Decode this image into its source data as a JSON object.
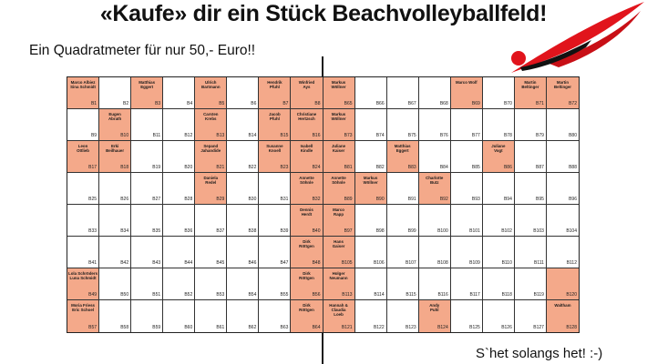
{
  "header": {
    "title": "«Kaufe» dir ein Stück Beachvolleyballfeld!",
    "subtitle": "Ein Quadratmeter für nur 50,- Euro!!"
  },
  "footer": {
    "text": "S`het solangs het!  :-)"
  },
  "colors": {
    "sold": "#f4a98a",
    "logo_red": "#e1141c",
    "grid_line": "#333333"
  },
  "logo": {
    "icon": "volleyball-player-swoosh-icon"
  },
  "field": {
    "rows": [
      [
        {
          "num": "B1",
          "name": "Marco Albiez\nSina Schmidt",
          "sold": true
        },
        {
          "num": "B2",
          "name": "",
          "sold": false
        },
        {
          "num": "B3",
          "name": "Matthias\nEggert",
          "sold": true
        },
        {
          "num": "B4",
          "name": "",
          "sold": false
        },
        {
          "num": "B5",
          "name": "Ulrich\nBartmann",
          "sold": true
        },
        {
          "num": "B6",
          "name": "",
          "sold": false
        },
        {
          "num": "B7",
          "name": "Hendrik\nPfuhl",
          "sold": true
        },
        {
          "num": "B8",
          "name": "Winfried\nAys",
          "sold": true
        },
        {
          "num": "B65",
          "name": "Markus\nWöllner",
          "sold": true
        },
        {
          "num": "B66",
          "name": "",
          "sold": false
        },
        {
          "num": "B67",
          "name": "",
          "sold": false
        },
        {
          "num": "B68",
          "name": "",
          "sold": false
        },
        {
          "num": "B69",
          "name": "Marco Wolf",
          "sold": true
        },
        {
          "num": "B70",
          "name": "",
          "sold": false
        },
        {
          "num": "B71",
          "name": "Martin\nBeltinger",
          "sold": true
        },
        {
          "num": "B72",
          "name": "Martin\nBeltinger",
          "sold": true
        }
      ],
      [
        {
          "num": "B9",
          "name": "",
          "sold": false
        },
        {
          "num": "B10",
          "name": "Eugen\nAbrath",
          "sold": true
        },
        {
          "num": "B11",
          "name": "",
          "sold": false
        },
        {
          "num": "B12",
          "name": "",
          "sold": false
        },
        {
          "num": "B13",
          "name": "Carsten\nKrebs",
          "sold": true
        },
        {
          "num": "B14",
          "name": "",
          "sold": false
        },
        {
          "num": "B15",
          "name": "Jacob\nPfuhl",
          "sold": true
        },
        {
          "num": "B16",
          "name": "Christiane\nHertzsch",
          "sold": true
        },
        {
          "num": "B73",
          "name": "Markus\nWöllner",
          "sold": true
        },
        {
          "num": "B74",
          "name": "",
          "sold": false
        },
        {
          "num": "B75",
          "name": "",
          "sold": false
        },
        {
          "num": "B76",
          "name": "",
          "sold": false
        },
        {
          "num": "B77",
          "name": "",
          "sold": false
        },
        {
          "num": "B78",
          "name": "",
          "sold": false
        },
        {
          "num": "B79",
          "name": "",
          "sold": false
        },
        {
          "num": "B80",
          "name": "",
          "sold": false
        }
      ],
      [
        {
          "num": "B17",
          "name": "Leon\nOttlieb",
          "sold": true
        },
        {
          "num": "B18",
          "name": "Erki\nBeilhauer",
          "sold": true
        },
        {
          "num": "B19",
          "name": "",
          "sold": false
        },
        {
          "num": "B20",
          "name": "",
          "sold": false
        },
        {
          "num": "B21",
          "name": "Sepand\nJahandide",
          "sold": true
        },
        {
          "num": "B22",
          "name": "",
          "sold": false
        },
        {
          "num": "B23",
          "name": "Susanne\nKnoell",
          "sold": true
        },
        {
          "num": "B24",
          "name": "Isabell\nKindle",
          "sold": true
        },
        {
          "num": "B81",
          "name": "Juliane\nKaiser",
          "sold": true
        },
        {
          "num": "B82",
          "name": "",
          "sold": false
        },
        {
          "num": "B83",
          "name": "Matthias\nEggert",
          "sold": true
        },
        {
          "num": "B84",
          "name": "",
          "sold": false
        },
        {
          "num": "B85",
          "name": "",
          "sold": false
        },
        {
          "num": "B86",
          "name": "Juliane\nVogt",
          "sold": true
        },
        {
          "num": "B87",
          "name": "",
          "sold": false
        },
        {
          "num": "B88",
          "name": "",
          "sold": false
        }
      ],
      [
        {
          "num": "B25",
          "name": "",
          "sold": false
        },
        {
          "num": "B26",
          "name": "",
          "sold": false
        },
        {
          "num": "B27",
          "name": "",
          "sold": false
        },
        {
          "num": "B28",
          "name": "",
          "sold": false
        },
        {
          "num": "B29",
          "name": "Daniela\nRedel",
          "sold": true
        },
        {
          "num": "B30",
          "name": "",
          "sold": false
        },
        {
          "num": "B31",
          "name": "",
          "sold": false
        },
        {
          "num": "B32",
          "name": "Annette\nSöhnle",
          "sold": true
        },
        {
          "num": "B89",
          "name": "Annette\nSöhnle",
          "sold": true
        },
        {
          "num": "B90",
          "name": "Markus\nWöllner",
          "sold": true
        },
        {
          "num": "B91",
          "name": "",
          "sold": false
        },
        {
          "num": "B92",
          "name": "Charlotte\nButz",
          "sold": true
        },
        {
          "num": "B93",
          "name": "",
          "sold": false
        },
        {
          "num": "B94",
          "name": "",
          "sold": false
        },
        {
          "num": "B95",
          "name": "",
          "sold": false
        },
        {
          "num": "B96",
          "name": "",
          "sold": false
        }
      ],
      [
        {
          "num": "B33",
          "name": "",
          "sold": false
        },
        {
          "num": "B34",
          "name": "",
          "sold": false
        },
        {
          "num": "B35",
          "name": "",
          "sold": false
        },
        {
          "num": "B36",
          "name": "",
          "sold": false
        },
        {
          "num": "B37",
          "name": "",
          "sold": false
        },
        {
          "num": "B38",
          "name": "",
          "sold": false
        },
        {
          "num": "B39",
          "name": "",
          "sold": false
        },
        {
          "num": "B40",
          "name": "Dennis\nHerdt",
          "sold": true
        },
        {
          "num": "B97",
          "name": "Marco\nRapp",
          "sold": true
        },
        {
          "num": "B98",
          "name": "",
          "sold": false
        },
        {
          "num": "B99",
          "name": "",
          "sold": false
        },
        {
          "num": "B100",
          "name": "",
          "sold": false
        },
        {
          "num": "B101",
          "name": "",
          "sold": false
        },
        {
          "num": "B102",
          "name": "",
          "sold": false
        },
        {
          "num": "B103",
          "name": "",
          "sold": false
        },
        {
          "num": "B104",
          "name": "",
          "sold": false
        }
      ],
      [
        {
          "num": "B41",
          "name": "",
          "sold": false
        },
        {
          "num": "B42",
          "name": "",
          "sold": false
        },
        {
          "num": "B43",
          "name": "",
          "sold": false
        },
        {
          "num": "B44",
          "name": "",
          "sold": false
        },
        {
          "num": "B45",
          "name": "",
          "sold": false
        },
        {
          "num": "B46",
          "name": "",
          "sold": false
        },
        {
          "num": "B47",
          "name": "",
          "sold": false
        },
        {
          "num": "B48",
          "name": "Dirk\nRöttgen",
          "sold": true
        },
        {
          "num": "B105",
          "name": "Hans\nGaiser",
          "sold": true
        },
        {
          "num": "B106",
          "name": "",
          "sold": false
        },
        {
          "num": "B107",
          "name": "",
          "sold": false
        },
        {
          "num": "B108",
          "name": "",
          "sold": false
        },
        {
          "num": "B109",
          "name": "",
          "sold": false
        },
        {
          "num": "B110",
          "name": "",
          "sold": false
        },
        {
          "num": "B111",
          "name": "",
          "sold": false
        },
        {
          "num": "B112",
          "name": "",
          "sold": false
        }
      ],
      [
        {
          "num": "B49",
          "name": "Lola Schröders\nLuna Schmidt",
          "sold": true
        },
        {
          "num": "B50",
          "name": "",
          "sold": false
        },
        {
          "num": "B51",
          "name": "",
          "sold": false
        },
        {
          "num": "B52",
          "name": "",
          "sold": false
        },
        {
          "num": "B53",
          "name": "",
          "sold": false
        },
        {
          "num": "B54",
          "name": "",
          "sold": false
        },
        {
          "num": "B55",
          "name": "",
          "sold": false
        },
        {
          "num": "B56",
          "name": "Dirk\nRöttgen",
          "sold": true
        },
        {
          "num": "B113",
          "name": "Holger\nNeumann",
          "sold": true
        },
        {
          "num": "B114",
          "name": "",
          "sold": false
        },
        {
          "num": "B115",
          "name": "",
          "sold": false
        },
        {
          "num": "B116",
          "name": "",
          "sold": false
        },
        {
          "num": "B117",
          "name": "",
          "sold": false
        },
        {
          "num": "B118",
          "name": "",
          "sold": false
        },
        {
          "num": "B119",
          "name": "",
          "sold": false
        },
        {
          "num": "B120",
          "name": "",
          "sold": true
        }
      ],
      [
        {
          "num": "B57",
          "name": "Moria Friess\nEric Schoel",
          "sold": true
        },
        {
          "num": "B58",
          "name": "",
          "sold": false
        },
        {
          "num": "B59",
          "name": "",
          "sold": false
        },
        {
          "num": "B60",
          "name": "",
          "sold": false
        },
        {
          "num": "B61",
          "name": "",
          "sold": false
        },
        {
          "num": "B62",
          "name": "",
          "sold": false
        },
        {
          "num": "B63",
          "name": "",
          "sold": false
        },
        {
          "num": "B64",
          "name": "Dirk\nRöttgen",
          "sold": true
        },
        {
          "num": "B121",
          "name": "Hannah &\nClaudia\nLoeb",
          "sold": true
        },
        {
          "num": "B122",
          "name": "",
          "sold": false
        },
        {
          "num": "B123",
          "name": "",
          "sold": false
        },
        {
          "num": "B124",
          "name": "Andy\nPuhl",
          "sold": true
        },
        {
          "num": "B125",
          "name": "",
          "sold": false
        },
        {
          "num": "B126",
          "name": "",
          "sold": false
        },
        {
          "num": "B127",
          "name": "",
          "sold": false
        },
        {
          "num": "B128",
          "name": "Waltham",
          "sold": true
        }
      ]
    ]
  }
}
